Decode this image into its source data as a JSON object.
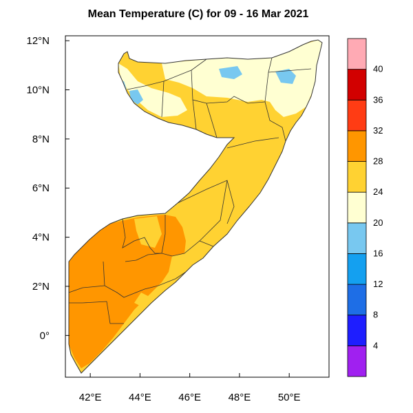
{
  "title": "Mean Temperature (C) for 09 - 16 Mar 2021",
  "map": {
    "lon_range": [
      41,
      51.6
    ],
    "lat_range": [
      -1.7,
      12.2
    ],
    "x_ticks": [
      {
        "value": 42,
        "label": "42°E"
      },
      {
        "value": 44,
        "label": "44°E"
      },
      {
        "value": 46,
        "label": "46°E"
      },
      {
        "value": 48,
        "label": "48°E"
      },
      {
        "value": 50,
        "label": "50°E"
      }
    ],
    "y_ticks": [
      {
        "value": 0,
        "label": "0°"
      },
      {
        "value": 2,
        "label": "2°N"
      },
      {
        "value": 4,
        "label": "4°N"
      },
      {
        "value": 6,
        "label": "6°N"
      },
      {
        "value": 8,
        "label": "8°N"
      },
      {
        "value": 10,
        "label": "10°N"
      },
      {
        "value": 12,
        "label": "12°N"
      }
    ]
  },
  "colorbar": {
    "boundaries": [
      "4",
      "8",
      "12",
      "16",
      "20",
      "24",
      "28",
      "32",
      "36",
      "40"
    ],
    "colors": [
      "#a020f0",
      "#1e1eff",
      "#1e6ee6",
      "#14a0f0",
      "#78c8f0",
      "#ffffd2",
      "#ffd232",
      "#ff9600",
      "#ff3c14",
      "#d20000",
      "#ffaab4"
    ]
  },
  "legend_colors": {
    "temp_20_24": "#ffffd2",
    "temp_24_28": "#ffd232",
    "temp_28_32": "#ff9600",
    "temp_16_20": "#78c8f0"
  }
}
